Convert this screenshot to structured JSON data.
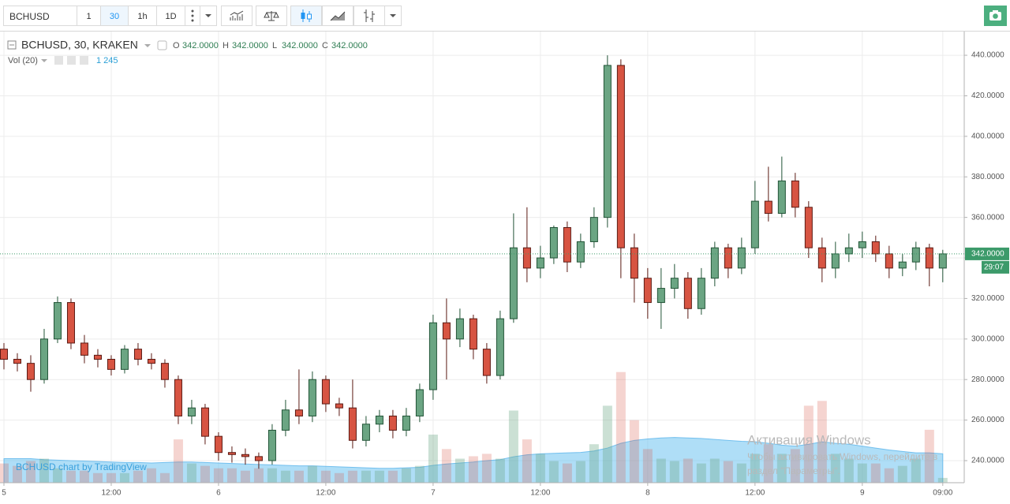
{
  "toolbar": {
    "symbol": "BCHUSD",
    "intervals": [
      "1",
      "30",
      "1h",
      "1D"
    ]
  },
  "chart_data": {
    "type": "candlestick",
    "title": "BCHUSD, 30, KRAKEN",
    "ohlc_legend": [
      {
        "label": "O",
        "value": "342.0000"
      },
      {
        "label": "H",
        "value": "342.0000"
      },
      {
        "label": "L",
        "value": "342.0000"
      },
      {
        "label": "C",
        "value": "342.0000"
      }
    ],
    "volume_legend": {
      "label": "Vol (20)",
      "value": "1 245"
    },
    "x": [
      0,
      1.5,
      3,
      4.5,
      6,
      7.5,
      9,
      10.5,
      12,
      13.5,
      15,
      16.5,
      18,
      19.5,
      21,
      22.5,
      24,
      25.5,
      27,
      28.5,
      30,
      31.5,
      33,
      34.5,
      36,
      37.5,
      39,
      40.5,
      42,
      43.5,
      45,
      46.5,
      48,
      49.5,
      51,
      52.5,
      54,
      55.5,
      57,
      58.5,
      60,
      61.5,
      63,
      64.5,
      66,
      67.5,
      69,
      70.5,
      72,
      73.5,
      75,
      76.5,
      78,
      79.5,
      81,
      82.5,
      84,
      85.5,
      87,
      88.5,
      90,
      91.5,
      93,
      94.5,
      96,
      97.5,
      99,
      100.5,
      102,
      103.5,
      105
    ],
    "open": [
      295,
      290,
      288,
      280,
      300,
      318,
      298,
      292,
      290,
      285,
      295,
      290,
      288,
      280,
      262,
      266,
      252,
      244,
      243,
      242,
      240,
      255,
      265,
      262,
      280,
      268,
      266,
      250,
      258,
      262,
      255,
      262,
      275,
      308,
      300,
      310,
      295,
      282,
      310,
      345,
      335,
      340,
      355,
      338,
      348,
      360,
      435,
      345,
      330,
      318,
      325,
      330,
      315,
      330,
      345,
      335,
      345,
      368,
      362,
      378,
      365,
      345,
      335,
      342,
      345,
      348,
      342,
      335,
      338,
      345,
      335
    ],
    "high": [
      298,
      293,
      292,
      305,
      321,
      320,
      302,
      295,
      292,
      297,
      298,
      293,
      290,
      282,
      270,
      268,
      254,
      247,
      246,
      244,
      258,
      270,
      285,
      284,
      282,
      271,
      280,
      262,
      265,
      265,
      266,
      278,
      312,
      320,
      315,
      312,
      298,
      314,
      362,
      365,
      346,
      356,
      358,
      352,
      365,
      440,
      438,
      352,
      335,
      335,
      337,
      333,
      335,
      348,
      347,
      350,
      378,
      385,
      390,
      382,
      368,
      350,
      348,
      352,
      353,
      351,
      346,
      342,
      348,
      347,
      344
    ],
    "low": [
      285,
      284,
      274,
      278,
      298,
      295,
      288,
      286,
      282,
      283,
      287,
      285,
      276,
      258,
      258,
      248,
      240,
      239,
      238,
      236,
      238,
      252,
      258,
      259,
      264,
      262,
      246,
      247,
      254,
      251,
      252,
      259,
      270,
      280,
      296,
      290,
      278,
      280,
      308,
      328,
      330,
      337,
      333,
      335,
      345,
      355,
      330,
      318,
      310,
      305,
      320,
      310,
      312,
      326,
      330,
      332,
      342,
      358,
      360,
      360,
      340,
      328,
      330,
      338,
      340,
      338,
      330,
      331,
      334,
      326,
      328
    ],
    "close": [
      290,
      288,
      280,
      300,
      318,
      298,
      292,
      290,
      285,
      295,
      290,
      288,
      280,
      262,
      266,
      252,
      244,
      243,
      242,
      240,
      255,
      265,
      262,
      280,
      268,
      266,
      250,
      258,
      262,
      255,
      262,
      275,
      308,
      300,
      310,
      295,
      282,
      310,
      345,
      335,
      340,
      355,
      338,
      348,
      360,
      435,
      345,
      330,
      318,
      325,
      330,
      315,
      330,
      345,
      335,
      345,
      368,
      362,
      378,
      365,
      345,
      335,
      342,
      345,
      348,
      342,
      335,
      338,
      345,
      335,
      342
    ],
    "volume": [
      400,
      350,
      450,
      500,
      300,
      250,
      250,
      200,
      200,
      200,
      250,
      300,
      200,
      900,
      400,
      350,
      300,
      300,
      250,
      300,
      300,
      250,
      250,
      350,
      250,
      200,
      250,
      250,
      250,
      250,
      300,
      350,
      1000,
      700,
      500,
      550,
      600,
      500,
      1500,
      900,
      600,
      450,
      400,
      450,
      800,
      1600,
      2300,
      1300,
      700,
      500,
      450,
      500,
      400,
      500,
      450,
      400,
      600,
      800,
      600,
      700,
      1600,
      1700,
      600,
      500,
      400,
      400,
      300,
      350,
      500,
      1100,
      100
    ],
    "volume_ma": [
      500,
      500,
      500,
      480,
      470,
      460,
      450,
      440,
      430,
      420,
      420,
      410,
      420,
      430,
      430,
      420,
      410,
      400,
      390,
      380,
      370,
      360,
      350,
      350,
      340,
      330,
      320,
      310,
      300,
      300,
      310,
      320,
      360,
      390,
      410,
      430,
      460,
      480,
      540,
      580,
      600,
      610,
      620,
      630,
      660,
      720,
      820,
      880,
      910,
      930,
      940,
      930,
      920,
      900,
      880,
      860,
      850,
      820,
      780,
      760,
      800,
      850,
      820,
      800,
      760,
      720,
      680,
      650,
      620,
      620,
      600
    ],
    "up_color": "#6ba583",
    "down_color": "#d75442",
    "xlim": [
      -0.44,
      107.4
    ],
    "xticks": [
      {
        "value": 0,
        "label": "5"
      },
      {
        "value": 12,
        "label": "12:00"
      },
      {
        "value": 24,
        "label": "6"
      },
      {
        "value": 36,
        "label": "12:00"
      },
      {
        "value": 48,
        "label": "7"
      },
      {
        "value": 60,
        "label": "12:00"
      },
      {
        "value": 72,
        "label": "8"
      },
      {
        "value": 84,
        "label": "12:00"
      },
      {
        "value": 96,
        "label": "9"
      },
      {
        "value": 105,
        "label": "09:00"
      }
    ],
    "ylim": [
      229.1,
      451.7
    ],
    "yticks": [
      {
        "value": 240,
        "label": "240.0000"
      },
      {
        "value": 260,
        "label": "260.0000"
      },
      {
        "value": 280,
        "label": "280.0000"
      },
      {
        "value": 300,
        "label": "300.0000"
      },
      {
        "value": 320,
        "label": "320.0000"
      },
      {
        "value": 340,
        "label": "340.0000"
      },
      {
        "value": 360,
        "label": "360.0000"
      },
      {
        "value": 380,
        "label": "380.0000"
      },
      {
        "value": 400,
        "label": "400.0000"
      },
      {
        "value": 420,
        "label": "420.0000"
      },
      {
        "value": 440,
        "label": "440.0000"
      }
    ],
    "volume_lim": [
      0,
      3000
    ],
    "grid": true,
    "last_price": {
      "value": 342,
      "label": "342.0000"
    },
    "countdown": "29:07",
    "watermark": "BCHUSD chart by TradingView"
  },
  "os_notice": {
    "title": "Активация Windows",
    "lines": [
      "Чтобы активировать Windows, перейдите в",
      "раздел \"Параметры\"."
    ]
  }
}
